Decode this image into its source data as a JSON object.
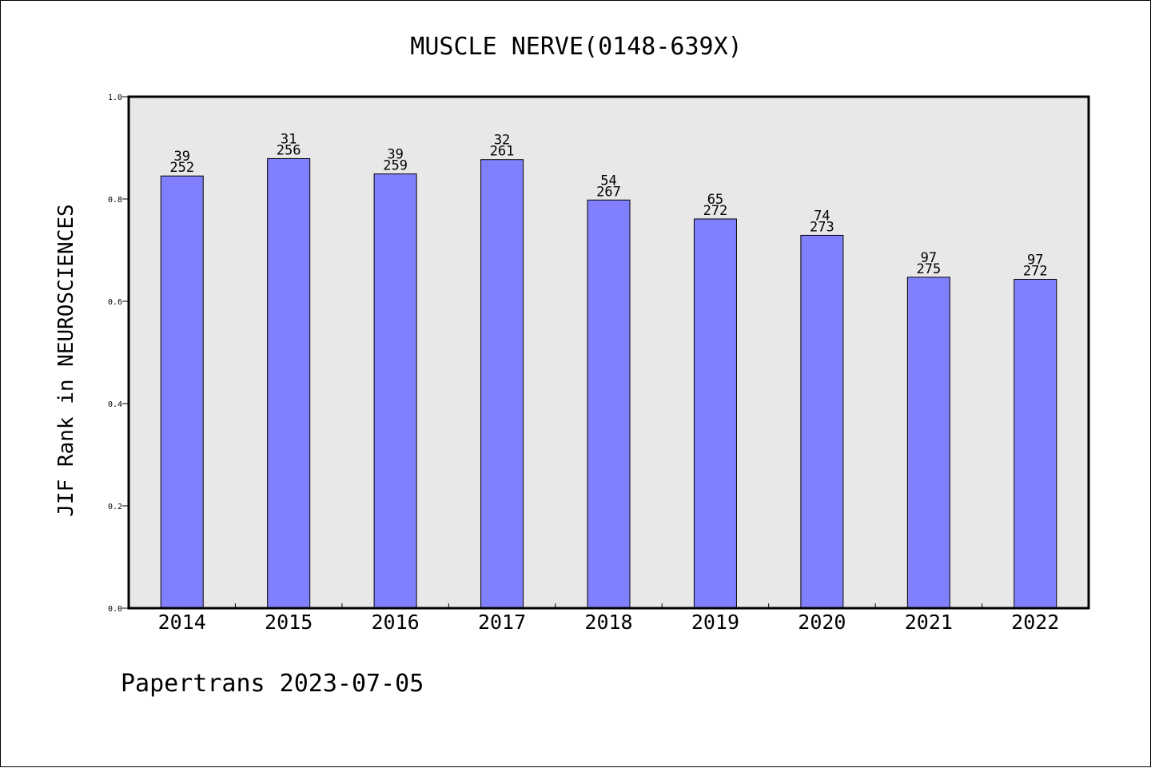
{
  "chart_data": {
    "type": "bar",
    "title": "MUSCLE NERVE(0148-639X)",
    "ylabel": "JIF Rank in NEUROSCIENCES",
    "xlabel": "",
    "footer": "Papertrans 2023-07-05",
    "categories": [
      "2014",
      "2015",
      "2016",
      "2017",
      "2018",
      "2019",
      "2020",
      "2021",
      "2022"
    ],
    "values": [
      0.845,
      0.879,
      0.849,
      0.877,
      0.798,
      0.761,
      0.729,
      0.647,
      0.643
    ],
    "rank_labels": [
      {
        "rank": "39",
        "total": "252"
      },
      {
        "rank": "31",
        "total": "256"
      },
      {
        "rank": "39",
        "total": "259"
      },
      {
        "rank": "32",
        "total": "261"
      },
      {
        "rank": "54",
        "total": "267"
      },
      {
        "rank": "65",
        "total": "272"
      },
      {
        "rank": "74",
        "total": "273"
      },
      {
        "rank": "97",
        "total": "275"
      },
      {
        "rank": "97",
        "total": "272"
      }
    ],
    "ylim": [
      0,
      1.0
    ],
    "yticks": [
      "0.0",
      "0.2",
      "0.4",
      "0.6",
      "0.8",
      "1.0"
    ],
    "grid": false,
    "colors": {
      "bar": "#8080ff",
      "plot_background": "#e8e8e8",
      "axis": "#000000"
    }
  }
}
